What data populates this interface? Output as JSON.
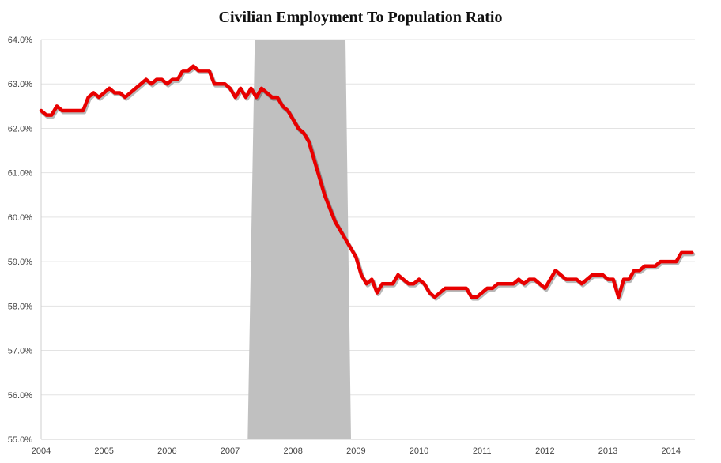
{
  "chart_data": {
    "type": "line",
    "title": "Civilian Employment To Population Ratio",
    "xlabel": "",
    "ylabel": "",
    "xlim": [
      2004,
      2014.38
    ],
    "ylim": [
      55.0,
      64.0
    ],
    "x_ticks": [
      "2004",
      "2005",
      "2006",
      "2007",
      "2008",
      "2009",
      "2010",
      "2011",
      "2012",
      "2013",
      "2014"
    ],
    "y_ticks": [
      "55.0%",
      "56.0%",
      "57.0%",
      "58.0%",
      "59.0%",
      "60.0%",
      "61.0%",
      "62.0%",
      "63.0%",
      "64.0%"
    ],
    "grid": "horizontal",
    "legend": "none",
    "colors": {
      "series": "#e80000",
      "recession": "#c0c0c0"
    },
    "recession": {
      "start": 2007.33,
      "end": 2008.92
    },
    "series": [
      {
        "start": 2004.0,
        "step_months": 1,
        "values": [
          62.4,
          62.3,
          62.3,
          62.5,
          62.4,
          62.4,
          62.4,
          62.4,
          62.4,
          62.7,
          62.8,
          62.7,
          62.8,
          62.9,
          62.8,
          62.8,
          62.7,
          62.8,
          62.9,
          63.0,
          63.1,
          63.0,
          63.1,
          63.1,
          63.0,
          63.1,
          63.1,
          63.3,
          63.3,
          63.4,
          63.3,
          63.3,
          63.3,
          63.0,
          63.0,
          63.0,
          62.9,
          62.7,
          62.9,
          62.7,
          62.9,
          62.7,
          62.9,
          62.8,
          62.7,
          62.7,
          62.5,
          62.4,
          62.2,
          62.0,
          61.9,
          61.7,
          61.3,
          60.9,
          60.5,
          60.2,
          59.9,
          59.7,
          59.5,
          59.3,
          59.1,
          58.7,
          58.5,
          58.6,
          58.3,
          58.5,
          58.5,
          58.5,
          58.7,
          58.6,
          58.5,
          58.5,
          58.6,
          58.5,
          58.3,
          58.2,
          58.3,
          58.4,
          58.4,
          58.4,
          58.4,
          58.4,
          58.2,
          58.2,
          58.3,
          58.4,
          58.4,
          58.5,
          58.5,
          58.5,
          58.5,
          58.6,
          58.5,
          58.6,
          58.6,
          58.5,
          58.4,
          58.6,
          58.8,
          58.7,
          58.6,
          58.6,
          58.6,
          58.5,
          58.6,
          58.7,
          58.7,
          58.7,
          58.6,
          58.6,
          58.2,
          58.6,
          58.6,
          58.8,
          58.8,
          58.9,
          58.9,
          58.9,
          59.0,
          59.0,
          59.0,
          59.0,
          59.2,
          59.2,
          59.2
        ]
      }
    ]
  }
}
